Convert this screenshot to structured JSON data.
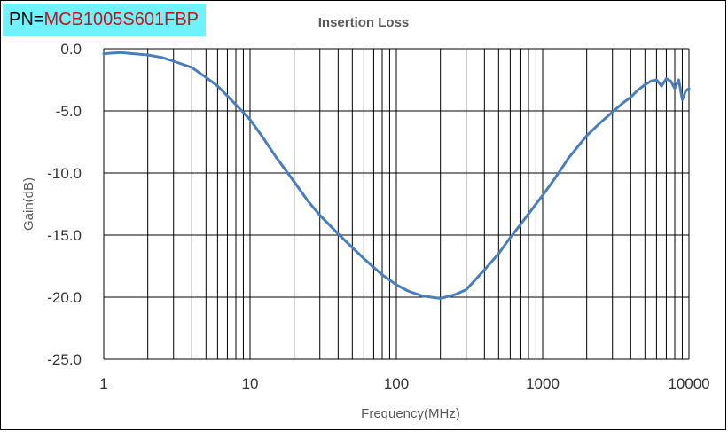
{
  "part_number": {
    "prefix": "PN=",
    "value": "MCB1005S601FBP"
  },
  "colors": {
    "label_background": "#6ff2fb",
    "part_number_text": "#c4161c",
    "series_line": "#4a7ebb"
  },
  "chart_data": {
    "type": "line",
    "title": "Insertion Loss",
    "xlabel": "Frequency(MHz)",
    "ylabel": "Gain(dB)",
    "x_scale": "log",
    "xlim": [
      1,
      10000
    ],
    "ylim": [
      -25,
      0
    ],
    "grid": true,
    "x_ticks": [
      "1",
      "10",
      "100",
      "1000",
      "10000"
    ],
    "y_ticks": [
      "0.0",
      "-5.0",
      "-10.0",
      "-15.0",
      "-20.0",
      "-25.0"
    ],
    "series": [
      {
        "x": [
          1,
          1.3,
          1.6,
          2,
          2.5,
          3,
          4,
          5,
          6,
          7,
          8,
          10,
          12,
          15,
          20,
          25,
          30,
          40,
          50,
          60,
          70,
          80,
          100,
          120,
          150,
          200,
          250,
          300,
          400,
          500,
          600,
          700,
          800,
          1000,
          1200,
          1500,
          2000,
          2500,
          3000,
          3500,
          4000,
          4500,
          5000,
          5500,
          6000,
          6500,
          7000,
          7500,
          8000,
          8500,
          9000,
          9500,
          10000
        ],
        "y": [
          -0.4,
          -0.3,
          -0.4,
          -0.5,
          -0.7,
          -1.0,
          -1.5,
          -2.3,
          -3.0,
          -3.8,
          -4.5,
          -5.7,
          -7.0,
          -8.7,
          -10.7,
          -12.3,
          -13.4,
          -14.9,
          -16.0,
          -16.9,
          -17.6,
          -18.2,
          -19.0,
          -19.5,
          -19.9,
          -20.1,
          -19.8,
          -19.4,
          -17.8,
          -16.5,
          -15.2,
          -14.2,
          -13.3,
          -11.8,
          -10.5,
          -8.8,
          -7.0,
          -5.9,
          -5.1,
          -4.4,
          -3.9,
          -3.3,
          -2.9,
          -2.6,
          -2.5,
          -3.0,
          -2.4,
          -2.6,
          -3.2,
          -2.5,
          -4.1,
          -3.4,
          -3.2
        ]
      }
    ]
  }
}
